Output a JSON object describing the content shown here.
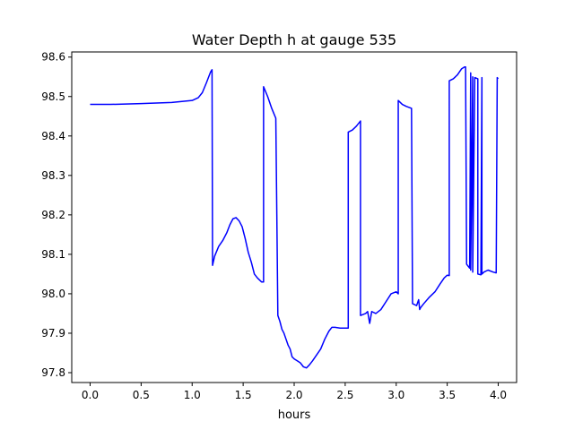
{
  "chart_data": {
    "type": "line",
    "title": "Water Depth h at gauge 535",
    "xlabel": "hours",
    "ylabel": "",
    "xlim": [
      -0.18,
      4.18
    ],
    "ylim": [
      97.775,
      98.613
    ],
    "x_ticks": [
      0,
      0.5,
      1,
      1.5,
      2,
      2.5,
      3,
      3.5,
      4
    ],
    "x_tick_labels": [
      "0.0",
      "0.5",
      "1.0",
      "1.5",
      "2.0",
      "2.5",
      "3.0",
      "3.5",
      "4.0"
    ],
    "y_ticks": [
      97.8,
      97.9,
      98.0,
      98.1,
      98.2,
      98.3,
      98.4,
      98.5,
      98.6
    ],
    "y_tick_labels": [
      "97.8",
      "97.9",
      "98.0",
      "98.1",
      "98.2",
      "98.3",
      "98.4",
      "98.5",
      "98.6"
    ],
    "grid": false,
    "legend": "none",
    "series": [
      {
        "color": "#0000ff",
        "x": [
          0,
          0.2,
          0.5,
          0.8,
          1.0,
          1.06,
          1.1,
          1.14,
          1.18,
          1.195,
          1.2,
          1.22,
          1.26,
          1.3,
          1.34,
          1.37,
          1.4,
          1.43,
          1.46,
          1.49,
          1.52,
          1.55,
          1.58,
          1.61,
          1.64,
          1.68,
          1.7,
          1.7,
          1.74,
          1.78,
          1.82,
          1.83,
          1.84,
          1.86,
          1.88,
          1.9,
          1.92,
          1.94,
          1.96,
          1.98,
          2.0,
          2.03,
          2.06,
          2.09,
          2.12,
          2.15,
          2.18,
          2.22,
          2.26,
          2.3,
          2.34,
          2.37,
          2.4,
          2.45,
          2.5,
          2.53,
          2.53,
          2.57,
          2.61,
          2.65,
          2.65,
          2.7,
          2.72,
          2.74,
          2.76,
          2.8,
          2.85,
          2.9,
          2.95,
          3.0,
          3.02,
          3.02,
          3.06,
          3.1,
          3.15,
          3.16,
          3.2,
          3.22,
          3.23,
          3.24,
          3.27,
          3.32,
          3.38,
          3.43,
          3.47,
          3.5,
          3.52,
          3.52,
          3.56,
          3.6,
          3.64,
          3.67,
          3.68,
          3.69,
          3.72,
          3.73,
          3.73,
          3.75,
          3.75,
          3.77,
          3.8,
          3.8,
          3.83,
          3.84,
          3.84,
          3.86,
          3.9,
          3.95,
          3.98,
          3.99,
          4.0
        ],
        "y": [
          98.48,
          98.48,
          98.482,
          98.485,
          98.49,
          98.497,
          98.51,
          98.535,
          98.562,
          98.568,
          98.072,
          98.095,
          98.12,
          98.135,
          98.155,
          98.175,
          98.19,
          98.193,
          98.185,
          98.17,
          98.14,
          98.105,
          98.08,
          98.05,
          98.04,
          98.03,
          98.03,
          98.525,
          98.5,
          98.47,
          98.445,
          98.2,
          97.945,
          97.93,
          97.91,
          97.9,
          97.885,
          97.87,
          97.86,
          97.84,
          97.835,
          97.83,
          97.825,
          97.815,
          97.812,
          97.82,
          97.83,
          97.845,
          97.86,
          97.885,
          97.905,
          97.915,
          97.915,
          97.913,
          97.913,
          97.913,
          98.41,
          98.415,
          98.425,
          98.438,
          97.945,
          97.95,
          97.955,
          97.925,
          97.955,
          97.95,
          97.96,
          97.98,
          98.0,
          98.005,
          98.0,
          98.49,
          98.48,
          98.475,
          98.47,
          97.975,
          97.97,
          97.985,
          97.96,
          97.965,
          97.975,
          97.99,
          98.005,
          98.025,
          98.04,
          98.047,
          98.046,
          98.54,
          98.545,
          98.555,
          98.57,
          98.575,
          98.575,
          98.075,
          98.065,
          98.56,
          98.06,
          98.55,
          98.055,
          98.548,
          98.545,
          98.05,
          98.048,
          98.548,
          98.05,
          98.055,
          98.06,
          98.055,
          98.053,
          98.548,
          98.545
        ]
      }
    ]
  }
}
